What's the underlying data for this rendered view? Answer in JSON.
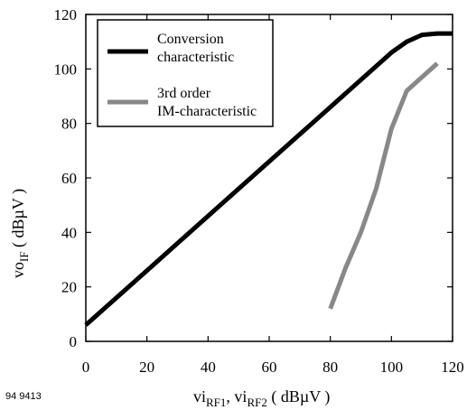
{
  "chart_data": {
    "type": "line",
    "title": "",
    "xlim": [
      0,
      120
    ],
    "ylim": [
      0,
      120
    ],
    "x_ticks": [
      0,
      20,
      40,
      60,
      80,
      100,
      120
    ],
    "y_ticks": [
      0,
      20,
      40,
      60,
      80,
      100,
      120
    ],
    "x_tick_labels": [
      "0",
      "20",
      "40",
      "60",
      "80",
      "100",
      "120"
    ],
    "y_tick_labels": [
      "0",
      "20",
      "40",
      "60",
      "80",
      "100",
      "120"
    ],
    "grid": false,
    "legend_position": "top-left",
    "xlabel": {
      "prefix": "vi",
      "sub1": "RF1",
      "mid": ", vi",
      "sub2": "RF2",
      "suffix": " ( dBµV )"
    },
    "ylabel": {
      "prefix": "vo",
      "sub": "IF",
      "suffix": " ( dBµV )"
    },
    "series": [
      {
        "legend_lines": [
          "Conversion",
          "characteristic"
        ],
        "color": "#000000",
        "points": [
          [
            0,
            6
          ],
          [
            20,
            26
          ],
          [
            40,
            46
          ],
          [
            60,
            66
          ],
          [
            80,
            86
          ],
          [
            100,
            106
          ],
          [
            105,
            110
          ],
          [
            110,
            112.5
          ],
          [
            115,
            113
          ],
          [
            120,
            113
          ]
        ]
      },
      {
        "legend_lines": [
          "3rd order",
          "IM-characteristic"
        ],
        "color": "#888888",
        "points": [
          [
            80,
            12
          ],
          [
            85,
            27
          ],
          [
            90,
            40
          ],
          [
            95,
            56
          ],
          [
            100,
            78
          ],
          [
            105,
            92
          ],
          [
            110,
            97
          ],
          [
            115,
            102
          ]
        ]
      }
    ]
  },
  "figure_id": "94 9413"
}
